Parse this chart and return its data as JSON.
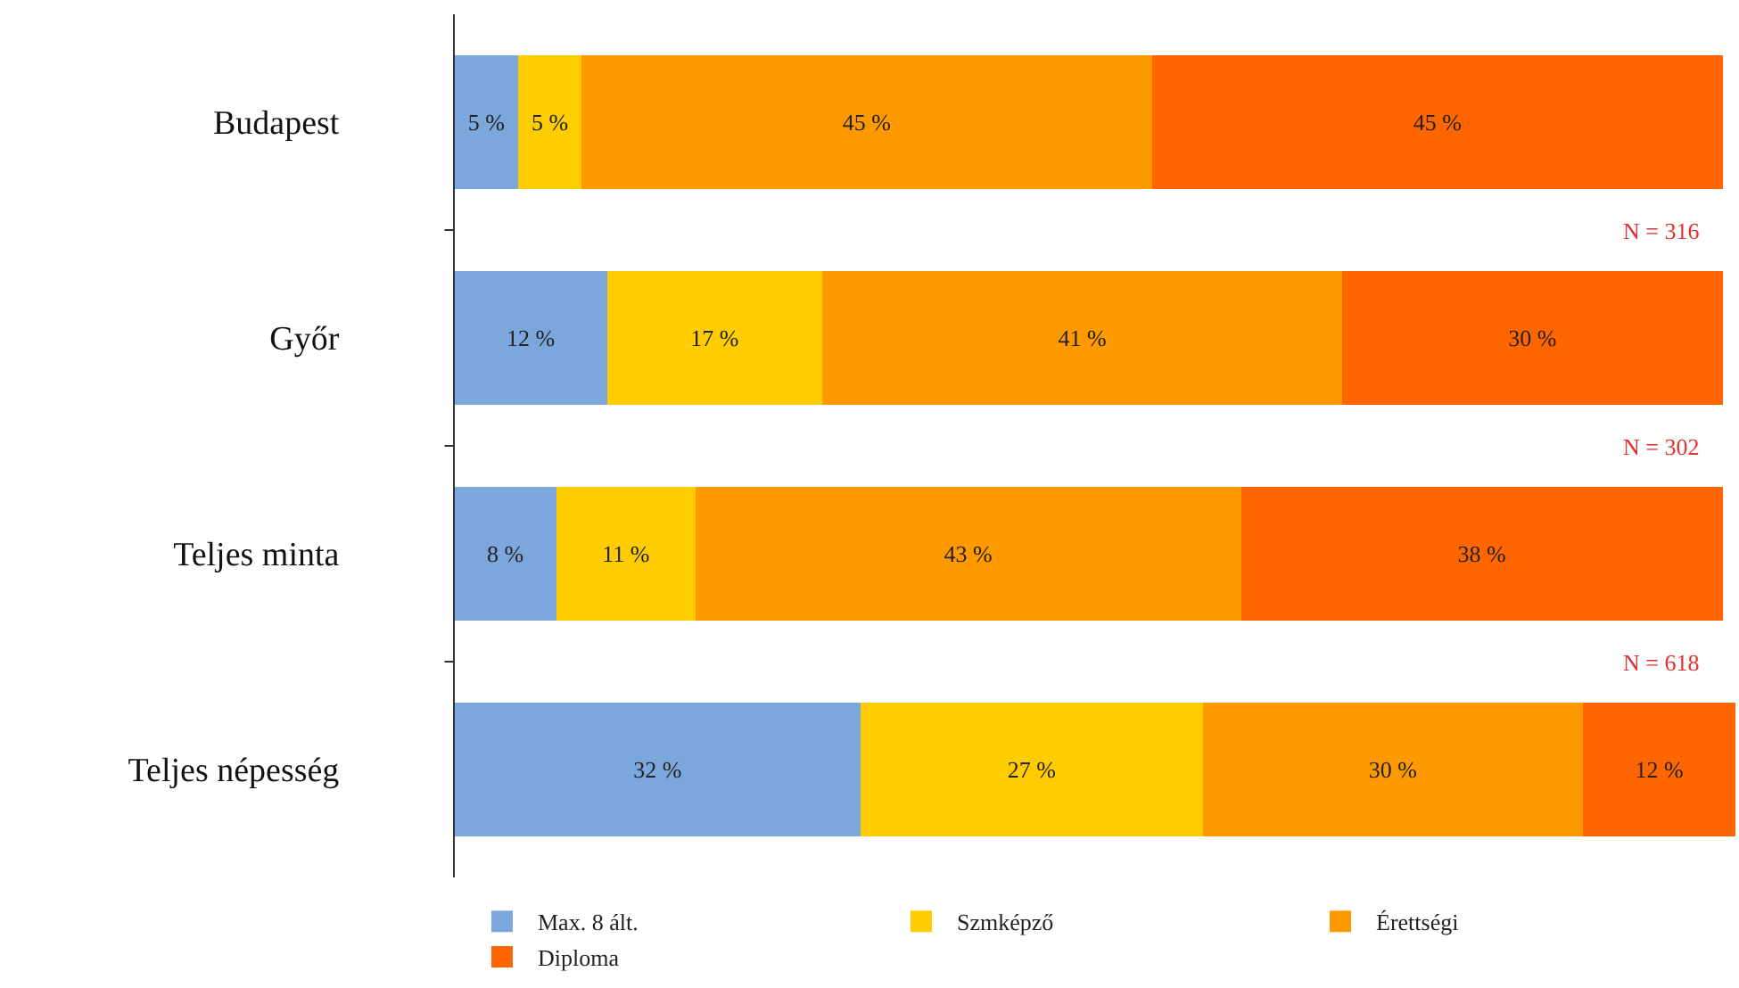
{
  "chart_data": {
    "type": "bar",
    "orientation": "horizontal",
    "stacked": true,
    "categories": [
      "Budapest",
      "Győr",
      "Teljes minta",
      "Teljes népesség"
    ],
    "series": [
      {
        "name": "Max. 8 ált.",
        "color": "#7ba7dc",
        "values": [
          5,
          12,
          8,
          32
        ],
        "value_labels": [
          "5 %",
          "12 %",
          "8 %",
          "32 %"
        ]
      },
      {
        "name": "Szmképző",
        "color": "#ffcc00",
        "values": [
          5,
          17,
          11,
          27
        ],
        "value_labels": [
          "5 %",
          "17 %",
          "11 %",
          "27 %"
        ]
      },
      {
        "name": "Érettségi",
        "color": "#ff9900",
        "values": [
          45,
          41,
          43,
          30
        ],
        "value_labels": [
          "45 %",
          "41 %",
          "43 %",
          "30 %"
        ]
      },
      {
        "name": "Diploma",
        "color": "#ff6600",
        "values": [
          45,
          30,
          38,
          12
        ],
        "value_labels": [
          "45 %",
          "30 %",
          "38 %",
          "12 %"
        ]
      }
    ],
    "xlim": [
      0,
      101
    ],
    "annotations": [
      "N = 316",
      "N = 302",
      "N = 618"
    ],
    "legend": "bottom",
    "tick_labels": "y"
  }
}
